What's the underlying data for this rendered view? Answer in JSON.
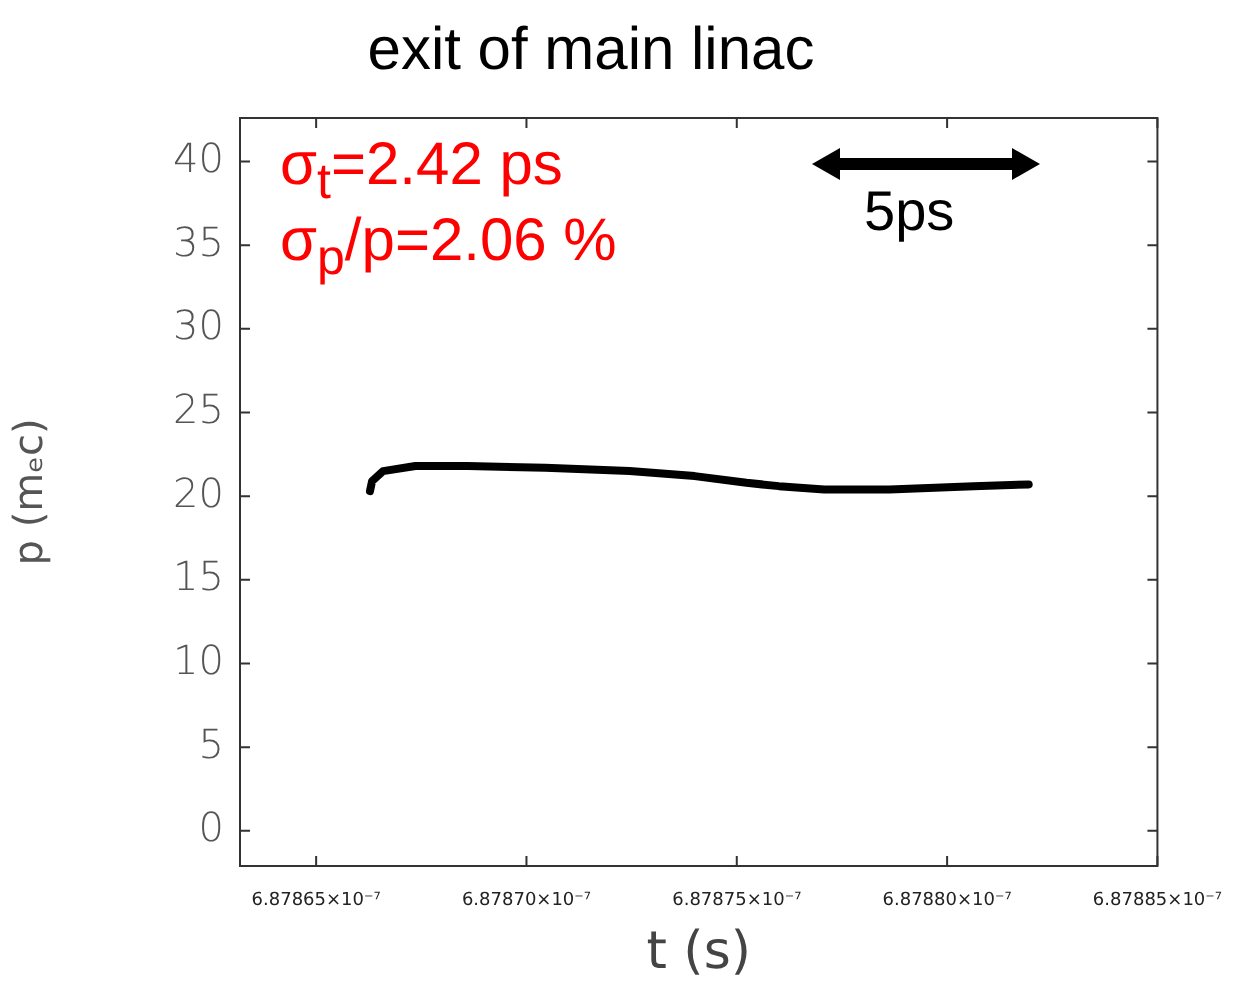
{
  "chart_data": {
    "type": "line",
    "title": "exit of main linac",
    "xlabel": "t (s)",
    "ylabel": "p (mₑc)",
    "annotations": [
      "σ$_{t}$=2.42 ps",
      "σ$_{p}$/p=2.06 %",
      "5ps"
    ],
    "x": [
      6.8786628e-07,
      6.8786633e-07,
      6.8786659e-07,
      6.8786736e-07,
      6.878686e-07,
      6.8787045e-07,
      6.8787245e-07,
      6.87874e-07,
      6.8787523e-07,
      6.87876e-07,
      6.8787708e-07,
      6.8787863e-07,
      6.8788063e-07,
      6.8788194e-07
    ],
    "series": [
      {
        "color": "#000000",
        "values": [
          20.3,
          20.9,
          21.5,
          21.8,
          21.8,
          21.7,
          21.5,
          21.2,
          20.8,
          20.6,
          20.4,
          20.4,
          20.6,
          20.7
        ]
      }
    ],
    "xlim": [
      6.8786319e-07,
      6.87885e-07
    ],
    "xticks": [
      {
        "value": 6.87865e-07,
        "label": "6.87865×10⁻⁷"
      },
      {
        "value": 6.8787e-07,
        "label": "6.87870×10⁻⁷"
      },
      {
        "value": 6.87875e-07,
        "label": "6.87875×10⁻⁷"
      },
      {
        "value": 6.8788e-07,
        "label": "6.87880×10⁻⁷"
      },
      {
        "value": 6.87885e-07,
        "label": "6.87885×10⁻⁷"
      }
    ],
    "ylim": [
      -2.1,
      42.6
    ],
    "yticks": [
      0,
      5,
      10,
      15,
      20,
      25,
      30,
      35,
      40
    ],
    "grid": false,
    "legend": false,
    "marker": "none",
    "line_style": "solid"
  }
}
